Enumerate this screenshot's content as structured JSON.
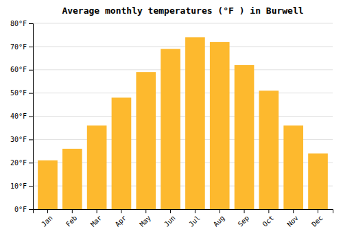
{
  "chart_data": {
    "type": "bar",
    "title": "Average monthly temperatures (°F ) in Burwell",
    "categories": [
      "Jan",
      "Feb",
      "Mar",
      "Apr",
      "May",
      "Jun",
      "Jul",
      "Aug",
      "Sep",
      "Oct",
      "Nov",
      "Dec"
    ],
    "values": [
      21,
      26,
      36,
      48,
      59,
      69,
      74,
      72,
      62,
      51,
      36,
      24
    ],
    "color": "#FDB92E",
    "ylim": [
      0,
      80
    ],
    "yticks": [
      {
        "value": 0,
        "label": "0°F"
      },
      {
        "value": 10,
        "label": "10°F"
      },
      {
        "value": 20,
        "label": "20°F"
      },
      {
        "value": 30,
        "label": "30°F"
      },
      {
        "value": 40,
        "label": "40°F"
      },
      {
        "value": 50,
        "label": "50°F"
      },
      {
        "value": 60,
        "label": "60°F"
      },
      {
        "value": 70,
        "label": "70°F"
      },
      {
        "value": 80,
        "label": "80°F"
      }
    ],
    "grid": true
  }
}
